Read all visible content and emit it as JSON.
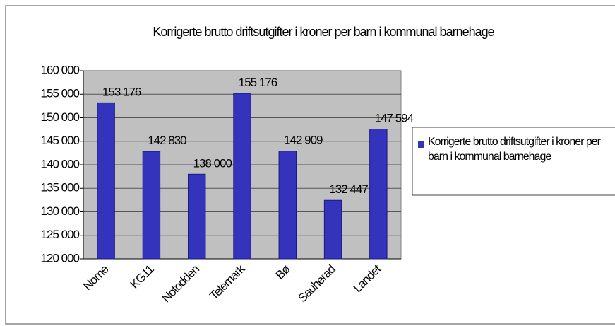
{
  "chart_data": {
    "type": "bar",
    "title": "Korrigerte brutto driftsutgifter i kroner per barn i kommunal barnehage",
    "categories": [
      "Nome",
      "KG11",
      "Notodden",
      "Telemark",
      "Bø",
      "Sauherad",
      "Landet"
    ],
    "series": [
      {
        "name": "Korrigerte brutto driftsutgifter i kroner per barn i kommunal barnehage",
        "color": "#3333bb",
        "values": [
          153176,
          142830,
          138000,
          155176,
          142909,
          132447,
          147594
        ],
        "value_labels": [
          "153 176",
          "142 830",
          "138 000",
          "155 176",
          "142 909",
          "132 447",
          "147 594"
        ]
      }
    ],
    "ylim": [
      120000,
      160000
    ],
    "yticks": [
      {
        "value": 120000,
        "label": "120 000"
      },
      {
        "value": 125000,
        "label": "125 000"
      },
      {
        "value": 130000,
        "label": "130 000"
      },
      {
        "value": 135000,
        "label": "135 000"
      },
      {
        "value": 140000,
        "label": "140 000"
      },
      {
        "value": 145000,
        "label": "145 000"
      },
      {
        "value": 150000,
        "label": "150 000"
      },
      {
        "value": 155000,
        "label": "155 000"
      },
      {
        "value": 160000,
        "label": "160 000"
      }
    ],
    "grid": true,
    "legend": "right"
  }
}
